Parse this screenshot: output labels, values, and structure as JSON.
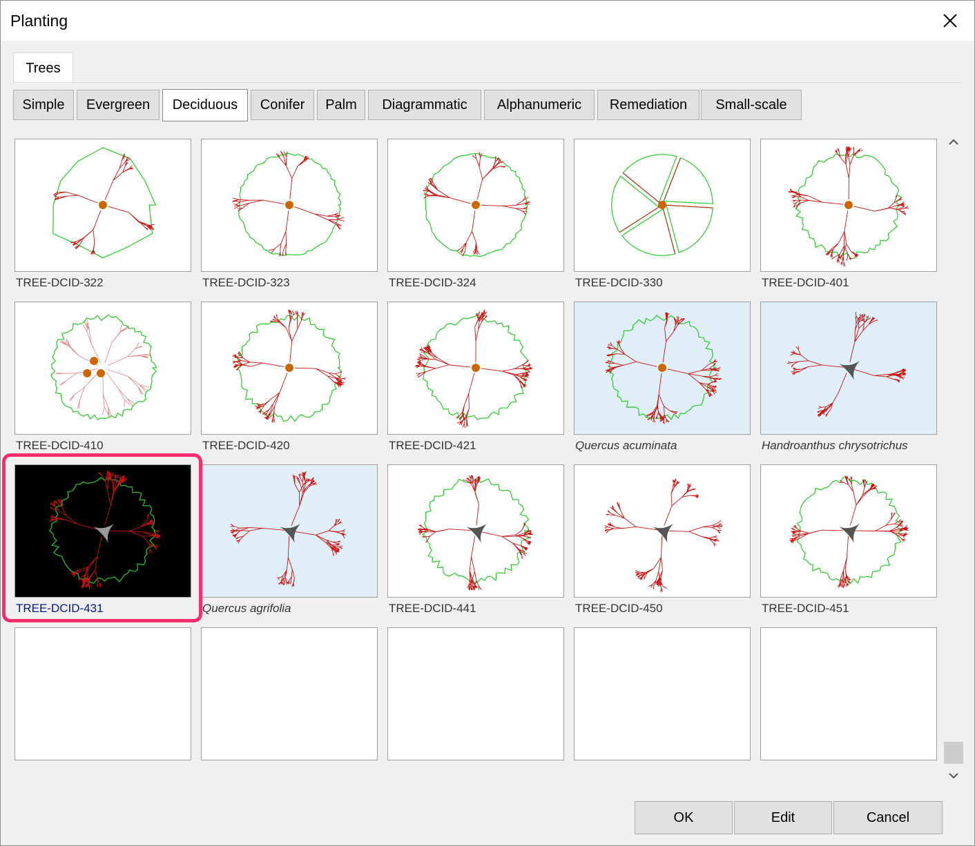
{
  "window": {
    "title": "Planting"
  },
  "tabs": [
    {
      "label": "Trees"
    }
  ],
  "subtabs": [
    {
      "label": "Simple"
    },
    {
      "label": "Evergreen"
    },
    {
      "label": "Deciduous",
      "active": true
    },
    {
      "label": "Conifer"
    },
    {
      "label": "Palm"
    },
    {
      "label": "Diagrammatic"
    },
    {
      "label": "Alphanumeric"
    },
    {
      "label": "Remediation"
    },
    {
      "label": "Small-scale"
    }
  ],
  "items": [
    {
      "label": "TREE-DCID-322",
      "style": "lobed"
    },
    {
      "label": "TREE-DCID-323",
      "style": "round"
    },
    {
      "label": "TREE-DCID-324",
      "style": "round"
    },
    {
      "label": "TREE-DCID-330",
      "style": "segments"
    },
    {
      "label": "TREE-DCID-401",
      "style": "dense"
    },
    {
      "label": "TREE-DCID-410",
      "style": "three-trunk"
    },
    {
      "label": "TREE-DCID-420",
      "style": "dense"
    },
    {
      "label": "TREE-DCID-421",
      "style": "dense"
    },
    {
      "label": "Quercus acuminata",
      "style": "dense",
      "highlighted": true
    },
    {
      "label": "Handroanthus chrysotrichus",
      "style": "branchy",
      "highlighted": true
    },
    {
      "label": "TREE-DCID-431",
      "style": "branchy-dark",
      "selected": true
    },
    {
      "label": "Quercus agrifolia",
      "style": "branchy",
      "highlighted": true
    },
    {
      "label": "TREE-DCID-441",
      "style": "branchy"
    },
    {
      "label": "TREE-DCID-450",
      "style": "branchy"
    },
    {
      "label": "TREE-DCID-451",
      "style": "branchy"
    },
    {
      "label": "",
      "style": "empty"
    },
    {
      "label": "",
      "style": "empty"
    },
    {
      "label": "",
      "style": "empty"
    },
    {
      "label": "",
      "style": "empty"
    },
    {
      "label": "",
      "style": "empty"
    }
  ],
  "buttons": {
    "ok": "OK",
    "edit": "Edit",
    "cancel": "Cancel"
  },
  "colors": {
    "canopy_outline": "#22cc22",
    "branches": "#cc1111",
    "trunk": "#cc6600",
    "highlight_bg": "#dfeef7",
    "selection_frame": "#fb2d6f"
  },
  "icons": {
    "close": "close-icon",
    "scroll_up": "chevron-up-icon",
    "scroll_down": "chevron-down-icon"
  }
}
